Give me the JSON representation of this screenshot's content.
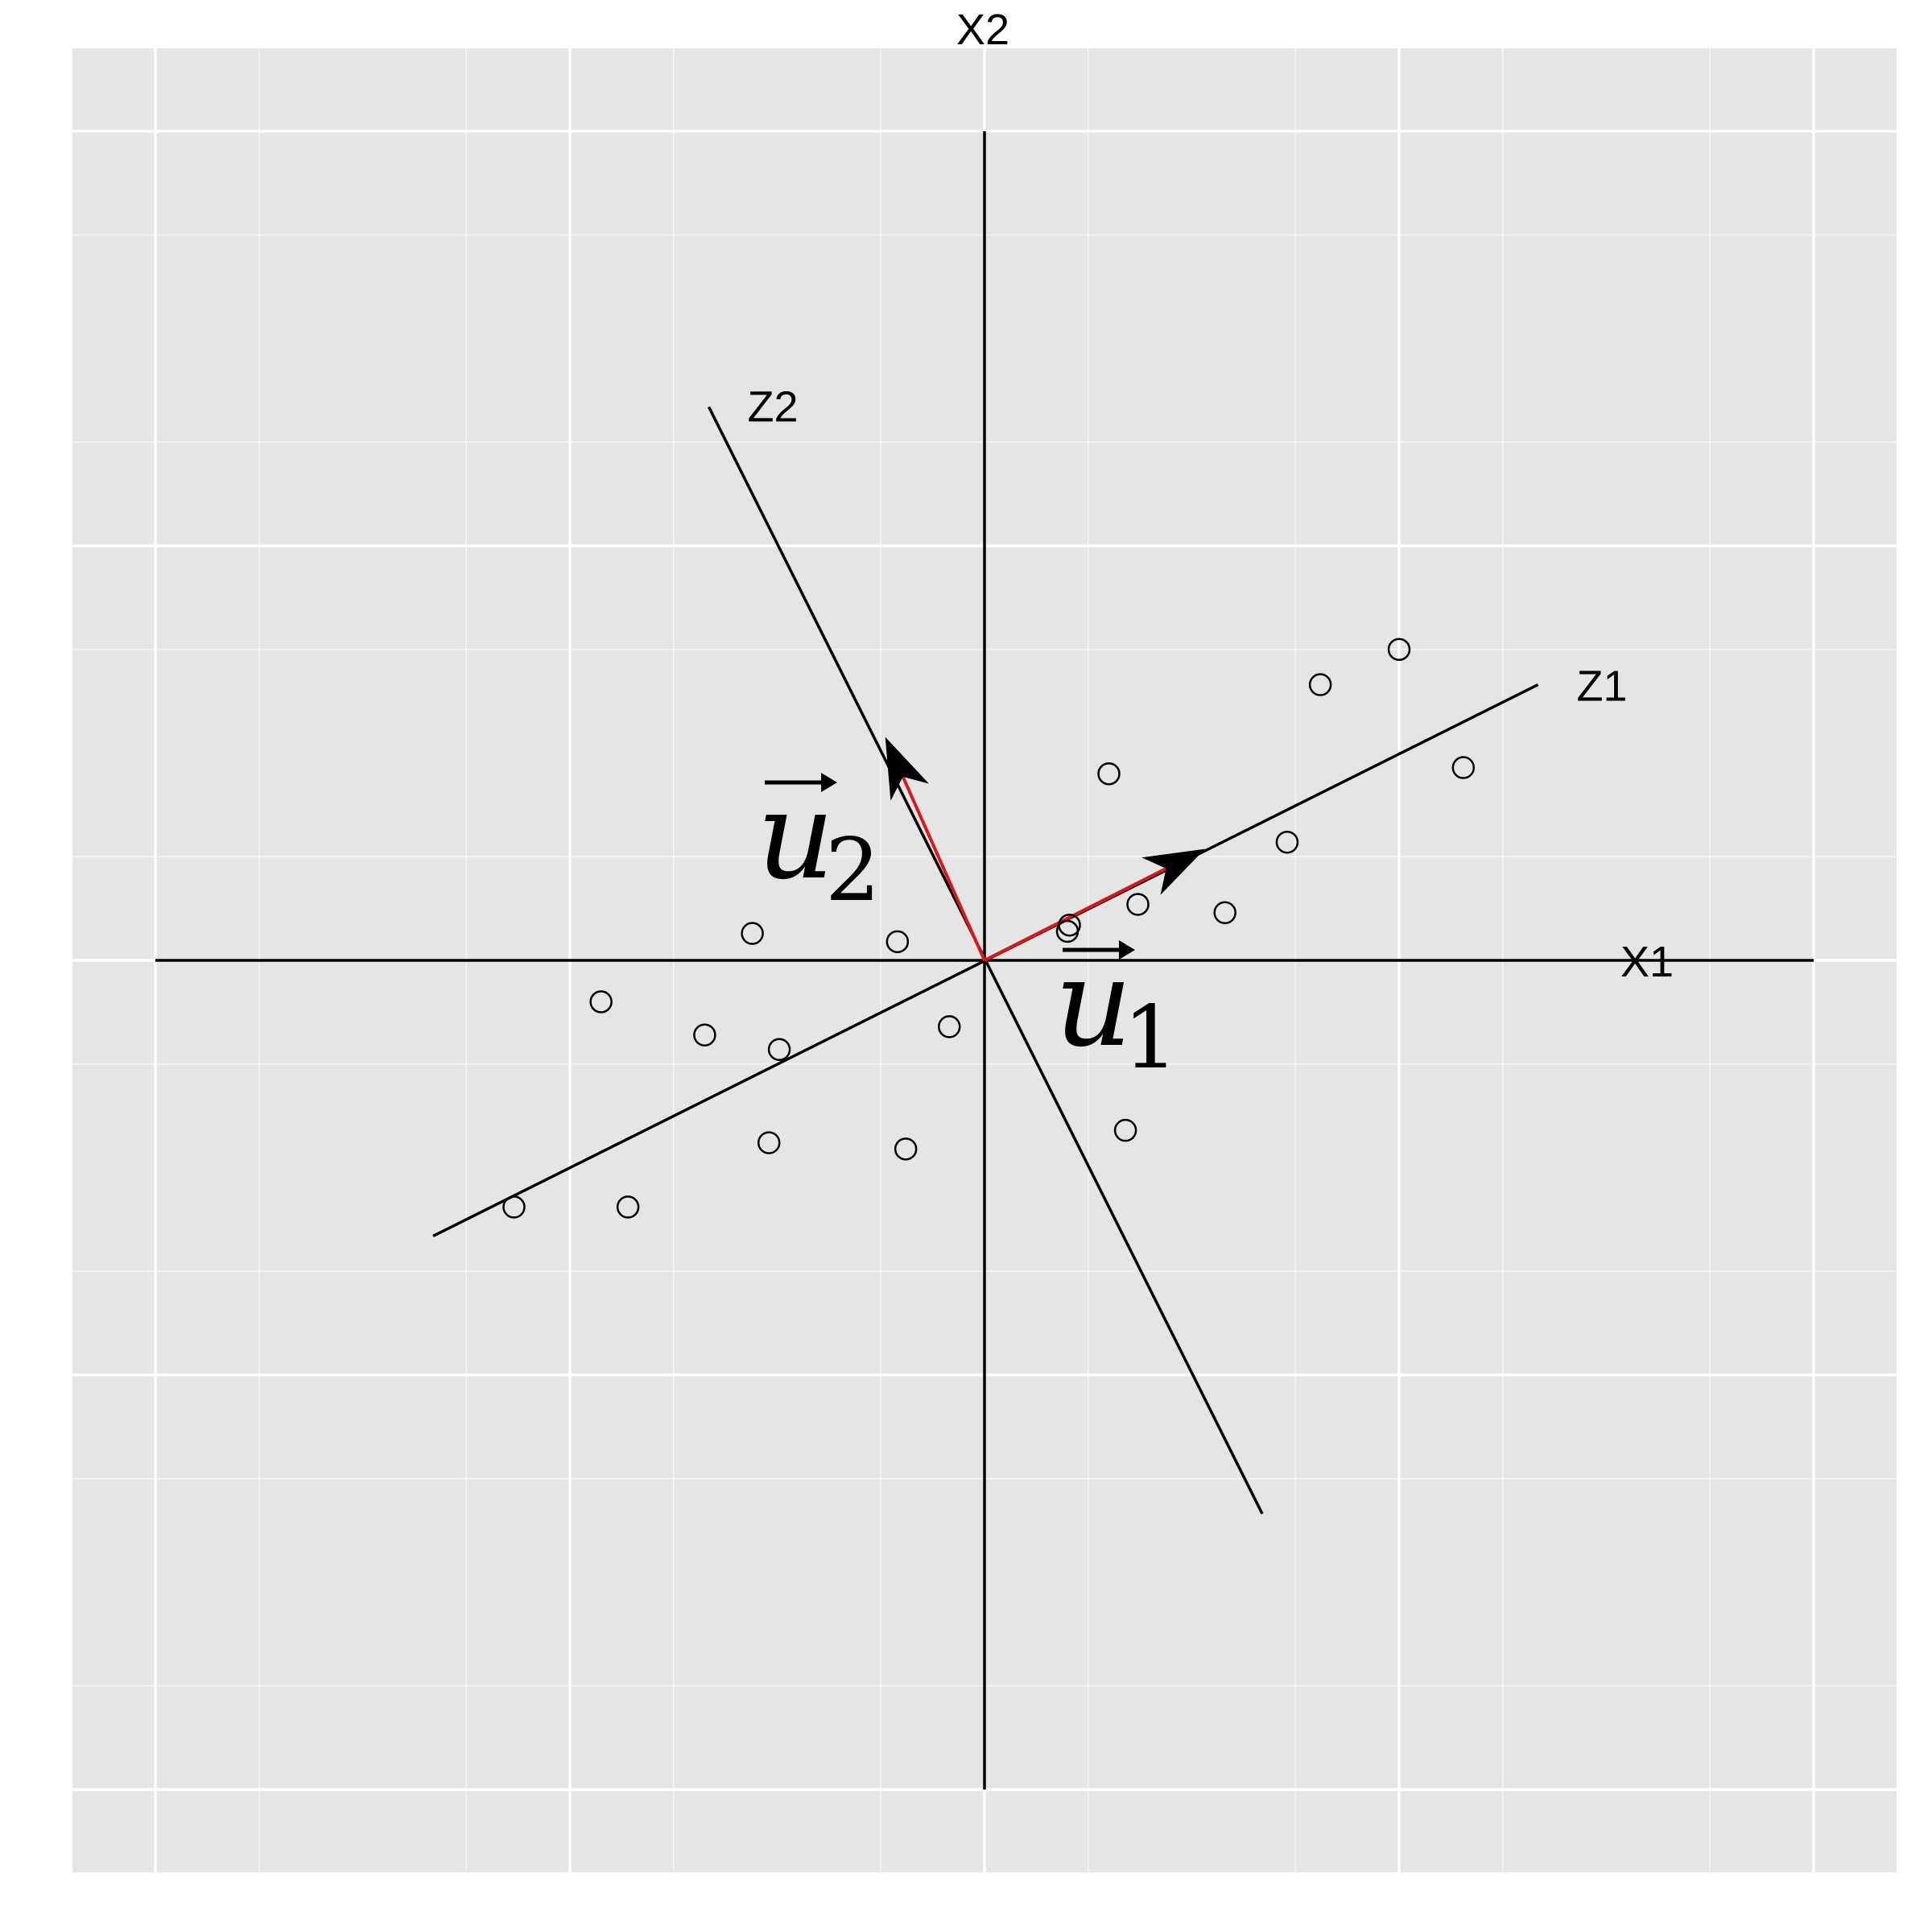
{
  "chart_data": {
    "type": "scatter",
    "title": "",
    "xlabel": "",
    "ylabel": "",
    "grid": true,
    "xlim": [
      -4.4,
      4.4
    ],
    "ylim": [
      -4.4,
      4.4
    ],
    "panel_background": "#E5E5E5",
    "grid_color": "#FFFFFF",
    "point_color": "#000000",
    "vector_color": "#D7191C",
    "axes": [
      {
        "label": "X1",
        "from": [
          -4,
          0
        ],
        "to": [
          4,
          0
        ]
      },
      {
        "label": "X2",
        "from": [
          0,
          -4
        ],
        "to": [
          0,
          4
        ]
      },
      {
        "label": "Z1",
        "from": [
          -2.66,
          -1.33
        ],
        "to": [
          2.67,
          1.33
        ]
      },
      {
        "label": "Z2",
        "from": [
          1.34,
          -2.67
        ],
        "to": [
          -1.33,
          2.67
        ]
      }
    ],
    "vectors": [
      {
        "name": "u1",
        "label_base": "u",
        "label_sub": "1",
        "from": [
          0,
          0
        ],
        "to": [
          0.89,
          0.45
        ],
        "arrow_at": [
          0.89,
          0.45
        ]
      },
      {
        "name": "u2",
        "label_base": "u",
        "label_sub": "2",
        "from": [
          0,
          0
        ],
        "to": [
          -0.4,
          0.9
        ],
        "arrow_at": [
          -0.4,
          0.9
        ]
      }
    ],
    "points": [
      {
        "x": 2.0,
        "y": 1.5
      },
      {
        "x": 1.62,
        "y": 1.33
      },
      {
        "x": 2.31,
        "y": 0.93
      },
      {
        "x": 0.6,
        "y": 0.9
      },
      {
        "x": 1.46,
        "y": 0.57
      },
      {
        "x": 1.16,
        "y": 0.23
      },
      {
        "x": 0.74,
        "y": 0.27
      },
      {
        "x": 0.41,
        "y": 0.17
      },
      {
        "x": 0.4,
        "y": 0.14
      },
      {
        "x": -0.42,
        "y": 0.09
      },
      {
        "x": -1.12,
        "y": 0.13
      },
      {
        "x": -0.17,
        "y": -0.32
      },
      {
        "x": -0.99,
        "y": -0.43
      },
      {
        "x": -1.35,
        "y": -0.36
      },
      {
        "x": -1.85,
        "y": -0.2
      },
      {
        "x": 0.68,
        "y": -0.82
      },
      {
        "x": -0.38,
        "y": -0.91
      },
      {
        "x": -1.04,
        "y": -0.88
      },
      {
        "x": -1.72,
        "y": -1.19
      },
      {
        "x": -2.27,
        "y": -1.19
      }
    ]
  }
}
